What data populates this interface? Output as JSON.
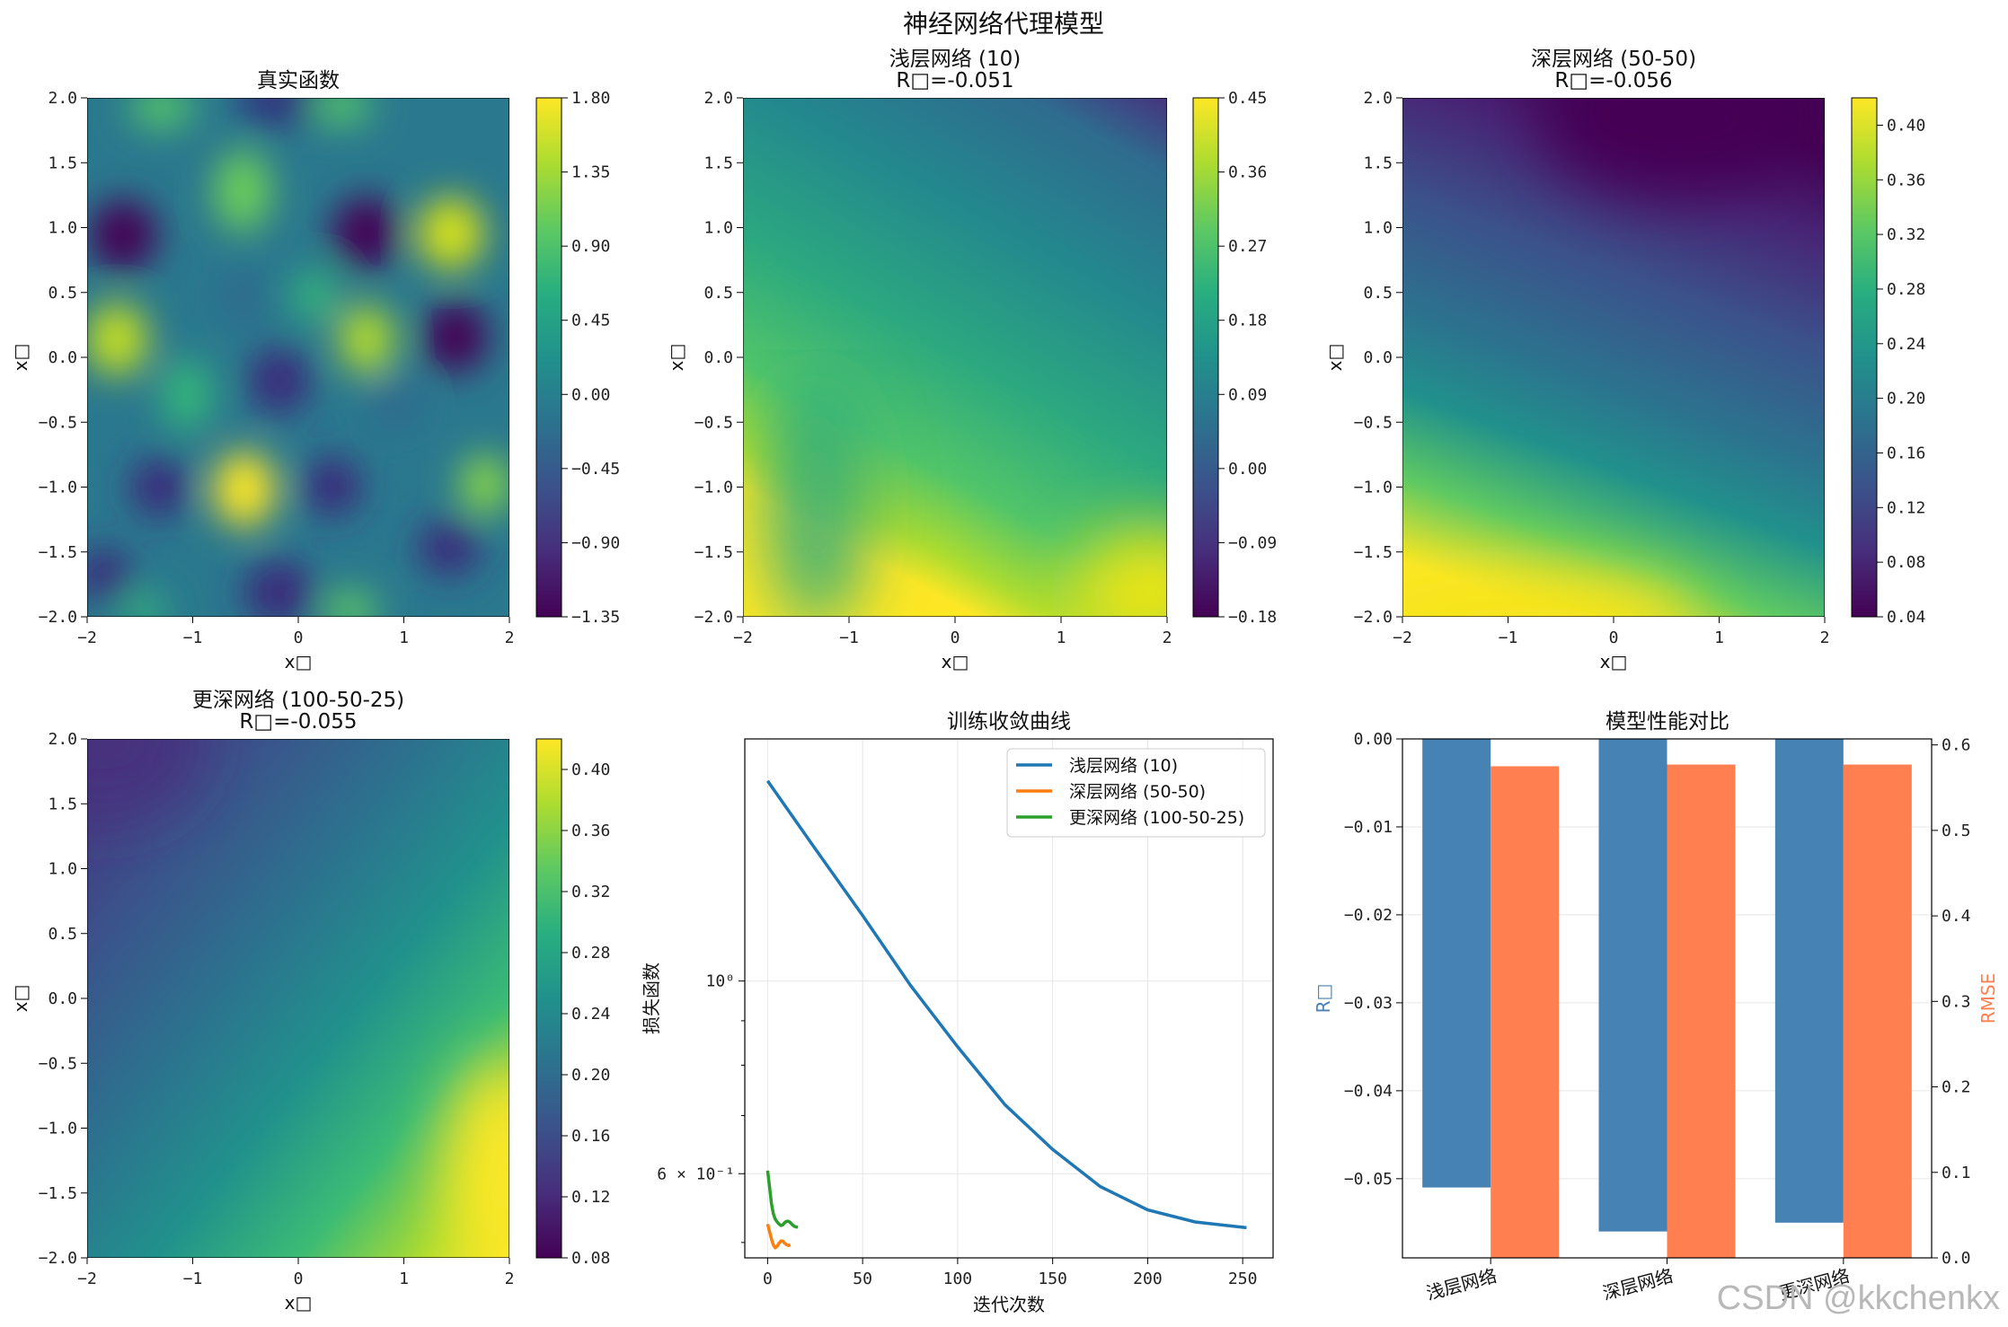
{
  "figure": {
    "suptitle": "神经网络代理模型",
    "watermark": "CSDN @kkchenkx"
  },
  "chart_data": [
    {
      "type": "heatmap",
      "title": "真实函数",
      "subtitle": "",
      "xlabel": "x□",
      "ylabel": "x□",
      "xlim": [
        -2,
        2
      ],
      "ylim": [
        -2,
        2
      ],
      "xticks": [
        "−2",
        "−1",
        "0",
        "1",
        "2"
      ],
      "yticks": [
        "−2.0",
        "−1.5",
        "−1.0",
        "−0.5",
        "0.0",
        "0.5",
        "1.0",
        "1.5",
        "2.0"
      ],
      "colorbar_range": [
        -1.35,
        1.8
      ],
      "colorbar_ticks": [
        "−1.35",
        "−0.90",
        "−0.45",
        "0.00",
        "0.45",
        "0.90",
        "1.35",
        "1.80"
      ],
      "colormap": "viridis"
    },
    {
      "type": "heatmap",
      "title": "浅层网络 (10)",
      "subtitle": "R□=-0.051",
      "xlabel": "x□",
      "ylabel": "x□",
      "xlim": [
        -2,
        2
      ],
      "ylim": [
        -2,
        2
      ],
      "xticks": [
        "−2",
        "−1",
        "0",
        "1",
        "2"
      ],
      "yticks": [
        "−2.0",
        "−1.5",
        "−1.0",
        "−0.5",
        "0.0",
        "0.5",
        "1.0",
        "1.5",
        "2.0"
      ],
      "colorbar_range": [
        -0.18,
        0.45
      ],
      "colorbar_ticks": [
        "−0.18",
        "−0.09",
        "0.00",
        "0.09",
        "0.18",
        "0.27",
        "0.36",
        "0.45"
      ],
      "colormap": "viridis"
    },
    {
      "type": "heatmap",
      "title": "深层网络 (50-50)",
      "subtitle": "R□=-0.056",
      "xlabel": "x□",
      "ylabel": "x□",
      "xlim": [
        -2,
        2
      ],
      "ylim": [
        -2,
        2
      ],
      "xticks": [
        "−2",
        "−1",
        "0",
        "1",
        "2"
      ],
      "yticks": [
        "−2.0",
        "−1.5",
        "−1.0",
        "−0.5",
        "0.0",
        "0.5",
        "1.0",
        "1.5",
        "2.0"
      ],
      "colorbar_range": [
        0.04,
        0.42
      ],
      "colorbar_ticks": [
        "0.04",
        "0.08",
        "0.12",
        "0.16",
        "0.20",
        "0.24",
        "0.28",
        "0.32",
        "0.36",
        "0.40"
      ],
      "colormap": "viridis"
    },
    {
      "type": "heatmap",
      "title": "更深网络 (100-50-25)",
      "subtitle": "R□=-0.055",
      "xlabel": "x□",
      "ylabel": "x□",
      "xlim": [
        -2,
        2
      ],
      "ylim": [
        -2,
        2
      ],
      "xticks": [
        "−2",
        "−1",
        "0",
        "1",
        "2"
      ],
      "yticks": [
        "−2.0",
        "−1.5",
        "−1.0",
        "−0.5",
        "0.0",
        "0.5",
        "1.0",
        "1.5",
        "2.0"
      ],
      "colorbar_range": [
        0.08,
        0.42
      ],
      "colorbar_ticks": [
        "0.08",
        "0.12",
        "0.16",
        "0.20",
        "0.24",
        "0.28",
        "0.32",
        "0.36",
        "0.40"
      ],
      "colormap": "viridis"
    },
    {
      "type": "line",
      "title": "训练收敛曲线",
      "xlabel": "迭代次数",
      "ylabel": "损失函数",
      "yscale": "log",
      "xlim": [
        -12,
        266
      ],
      "ylim": [
        0.48,
        1.9
      ],
      "xticks": [
        "0",
        "50",
        "100",
        "150",
        "200",
        "250"
      ],
      "yticks": [
        "10⁰",
        "6 × 10⁻¹"
      ],
      "grid": true,
      "legend_position": "top-right",
      "series": [
        {
          "name": "浅层网络 (10)",
          "color": "#1f77b4",
          "x": [
            0,
            25,
            50,
            75,
            100,
            125,
            150,
            175,
            200,
            225,
            252
          ],
          "y": [
            1.7,
            1.42,
            1.19,
            0.99,
            0.84,
            0.72,
            0.64,
            0.58,
            0.545,
            0.528,
            0.52
          ]
        },
        {
          "name": "深层网络 (50-50)",
          "color": "#ff7f0e",
          "x": [
            0,
            1,
            2,
            3,
            4,
            5,
            6,
            7,
            8,
            9,
            10,
            11,
            12
          ],
          "y": [
            0.525,
            0.515,
            0.505,
            0.497,
            0.493,
            0.495,
            0.499,
            0.502,
            0.502,
            0.499,
            0.497,
            0.496,
            0.497
          ]
        },
        {
          "name": "更深网络 (100-50-25)",
          "color": "#2ca02c",
          "x": [
            0,
            1,
            2,
            3,
            4,
            5,
            6,
            7,
            8,
            9,
            10,
            11,
            12,
            13,
            14,
            15,
            16
          ],
          "y": [
            0.605,
            0.58,
            0.555,
            0.54,
            0.532,
            0.528,
            0.525,
            0.523,
            0.524,
            0.527,
            0.529,
            0.529,
            0.527,
            0.524,
            0.522,
            0.521,
            0.521
          ]
        }
      ]
    },
    {
      "type": "bar",
      "title": "模型性能对比",
      "categories": [
        "浅层网络",
        "深层网络",
        "更深网络"
      ],
      "series": [
        {
          "name": "R□",
          "axis": "left",
          "color": "#4682b4",
          "values": [
            -0.051,
            -0.056,
            -0.055
          ]
        },
        {
          "name": "RMSE",
          "axis": "right",
          "color": "#ff7f50",
          "values": [
            0.575,
            0.577,
            0.577
          ]
        }
      ],
      "ylabel_left": "R□",
      "ylabel_right": "RMSE",
      "ylim_left": [
        -0.059,
        0.0
      ],
      "ylim_right": [
        0.0,
        0.607
      ],
      "yticks_left": [
        "−0.05",
        "−0.04",
        "−0.03",
        "−0.02",
        "−0.01",
        "0.00"
      ],
      "yticks_right": [
        "0.0",
        "0.1",
        "0.2",
        "0.3",
        "0.4",
        "0.5",
        "0.6"
      ],
      "grid": true
    }
  ]
}
